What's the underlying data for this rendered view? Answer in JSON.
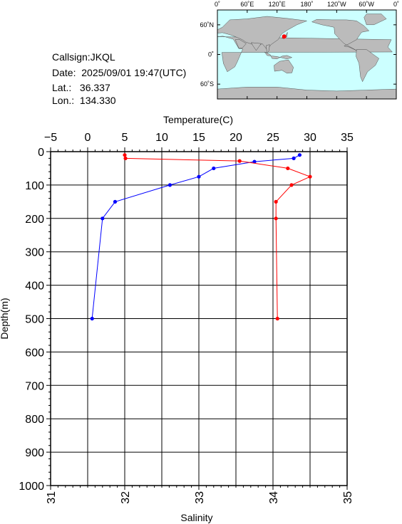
{
  "station": {
    "callsign_label": "Callsign:",
    "callsign": "JKQL",
    "date_label": "Date:",
    "date": "2025/09/01 19:47(UTC)",
    "lat_label": "Lat.:",
    "lat": "36.337",
    "lon_label": "Lon.:",
    "lon": "134.330"
  },
  "map": {
    "top_ticks": [
      "0˚",
      "60˚E",
      "120˚E",
      "180˚",
      "120˚W",
      "60˚W",
      "0˚"
    ],
    "lat_ticks": [
      "60˚N",
      "0˚",
      "60˚S"
    ],
    "ocean_color": "#ccffff",
    "land_color": "#bbbbbb",
    "marker_color": "#ff0000",
    "marker": {
      "lon": 134.33,
      "lat": 36.337
    }
  },
  "chart_data": {
    "type": "line",
    "depth_axis": {
      "label": "Depth(m)",
      "range": [
        0,
        1000
      ],
      "ticks": [
        0,
        100,
        200,
        300,
        400,
        500,
        600,
        700,
        800,
        900,
        1000
      ]
    },
    "temperature_axis": {
      "label": "Temperature(C)",
      "range": [
        -5,
        35
      ],
      "ticks": [
        -5,
        0,
        5,
        10,
        15,
        20,
        25,
        30,
        35
      ]
    },
    "salinity_axis": {
      "label": "Salinity",
      "range": [
        31,
        35
      ],
      "ticks": [
        31,
        32,
        33,
        34,
        35
      ]
    },
    "grid": true,
    "series": [
      {
        "quantity": "temperature",
        "color": "#0000ff",
        "points": [
          {
            "depth": 10,
            "value": 28.6
          },
          {
            "depth": 20,
            "value": 27.8
          },
          {
            "depth": 30,
            "value": 22.5
          },
          {
            "depth": 50,
            "value": 17.0
          },
          {
            "depth": 75,
            "value": 15.0
          },
          {
            "depth": 100,
            "value": 11.1
          },
          {
            "depth": 150,
            "value": 3.7
          },
          {
            "depth": 200,
            "value": 2.0
          },
          {
            "depth": 500,
            "value": 0.6
          }
        ]
      },
      {
        "quantity": "salinity",
        "color": "#ff0000",
        "points": [
          {
            "depth": 10,
            "value": 32.0
          },
          {
            "depth": 20,
            "value": 32.01
          },
          {
            "depth": 28,
            "value": 33.55
          },
          {
            "depth": 50,
            "value": 34.2
          },
          {
            "depth": 75,
            "value": 34.5
          },
          {
            "depth": 100,
            "value": 34.25
          },
          {
            "depth": 150,
            "value": 34.04
          },
          {
            "depth": 200,
            "value": 34.04
          },
          {
            "depth": 500,
            "value": 34.06
          }
        ]
      }
    ]
  }
}
